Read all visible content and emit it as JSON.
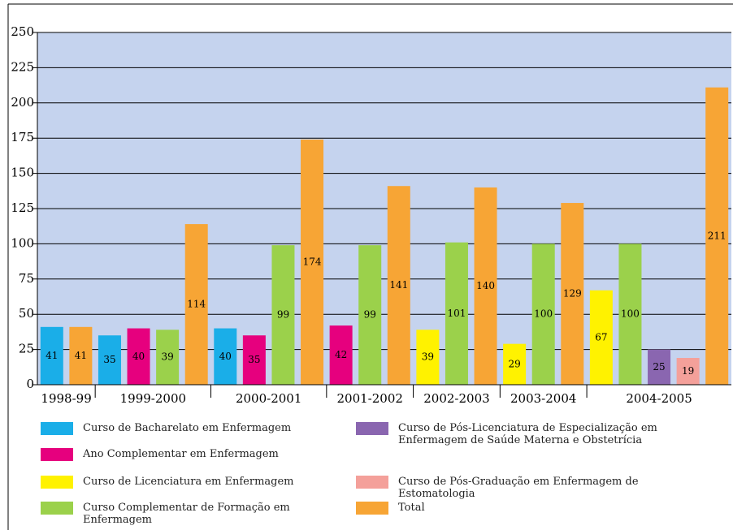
{
  "chart_data": {
    "type": "bar",
    "categories": [
      "1998-99",
      "1999-2000",
      "2000-2001",
      "2001-2002",
      "2002-2003",
      "2003-2004",
      "2004-2005"
    ],
    "series": [
      {
        "name": "Curso de Bacharelato em Enfermagem",
        "color": "#1aaee8",
        "values": [
          41,
          35,
          40,
          null,
          null,
          null,
          null
        ]
      },
      {
        "name": "Ano Complementar em Enfermagem",
        "color": "#e6007e",
        "values": [
          null,
          40,
          35,
          42,
          null,
          null,
          null
        ]
      },
      {
        "name": "Curso de Licenciatura em Enfermagem",
        "color": "#fff200",
        "values": [
          null,
          null,
          null,
          null,
          39,
          29,
          67
        ]
      },
      {
        "name": "Curso Complementar de Formação em Enfermagem",
        "color": "#9bd14b",
        "values": [
          null,
          39,
          99,
          99,
          101,
          100,
          100
        ]
      },
      {
        "name": "Curso de Pós-Licenciatura de Especialização em Enfermagem de Saúde Materna e Obstetrícia",
        "color": "#8a66b0",
        "values": [
          null,
          null,
          null,
          null,
          null,
          null,
          25
        ]
      },
      {
        "name": "Curso de Pós-Graduação em Enfermagem de Estomatologia",
        "color": "#f4a09a",
        "values": [
          null,
          null,
          null,
          null,
          null,
          null,
          19
        ]
      },
      {
        "name": "Total",
        "color": "#f7a535",
        "values": [
          41,
          114,
          174,
          141,
          140,
          129,
          211
        ]
      }
    ],
    "ylim": [
      0,
      250
    ],
    "yticks": [
      0,
      25,
      50,
      75,
      100,
      125,
      150,
      175,
      200,
      225,
      250
    ],
    "grid": true,
    "background": "#c5d3ee"
  }
}
